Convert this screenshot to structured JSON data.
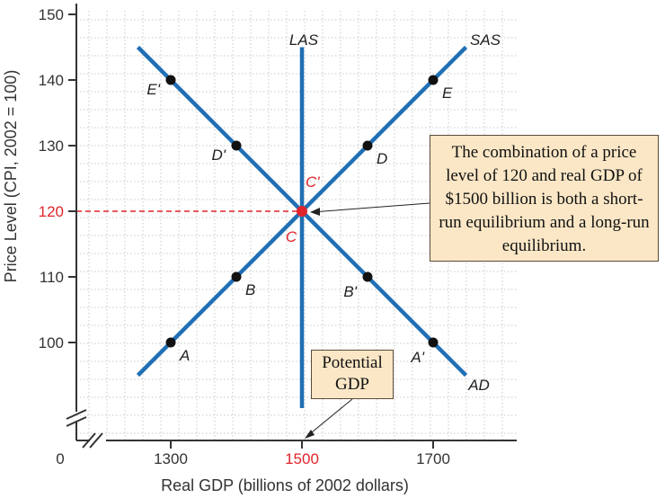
{
  "chart_data": {
    "type": "line",
    "xlabel": "Real GDP (billions of 2002 dollars)",
    "ylabel": "Price Level (CPI, 2002 = 100)",
    "x_ticks": [
      {
        "value": 1300,
        "label": "1300",
        "highlight": false
      },
      {
        "value": 1500,
        "label": "1500",
        "highlight": true
      },
      {
        "value": 1700,
        "label": "1700",
        "highlight": false
      }
    ],
    "y_ticks": [
      {
        "value": 100,
        "label": "100",
        "highlight": false
      },
      {
        "value": 110,
        "label": "110",
        "highlight": false
      },
      {
        "value": 120,
        "label": "120",
        "highlight": true
      },
      {
        "value": 130,
        "label": "130",
        "highlight": false
      },
      {
        "value": 140,
        "label": "140",
        "highlight": false
      },
      {
        "value": 150,
        "label": "150",
        "highlight": false
      }
    ],
    "origin_label": "0",
    "axis_break": true,
    "xlim": [
      1200,
      1750
    ],
    "ylim": [
      90,
      150
    ],
    "series": [
      {
        "name": "AD",
        "color": "#1f6fb5",
        "x": [
          1250,
          1750
        ],
        "y": [
          145,
          95
        ]
      },
      {
        "name": "SAS",
        "color": "#1f6fb5",
        "x": [
          1250,
          1750
        ],
        "y": [
          95,
          145
        ]
      },
      {
        "name": "LAS",
        "color": "#1f6fb5",
        "x": [
          1500,
          1500
        ],
        "y": [
          90,
          145
        ]
      }
    ],
    "points": [
      {
        "label": "A",
        "x": 1300,
        "y": 100,
        "color": "#111111"
      },
      {
        "label": "B",
        "x": 1400,
        "y": 110,
        "color": "#111111"
      },
      {
        "label": "D",
        "x": 1600,
        "y": 130,
        "color": "#111111"
      },
      {
        "label": "E",
        "x": 1700,
        "y": 140,
        "color": "#111111"
      },
      {
        "label": "E'",
        "x": 1300,
        "y": 140,
        "color": "#111111"
      },
      {
        "label": "D'",
        "x": 1400,
        "y": 130,
        "color": "#111111"
      },
      {
        "label": "B'",
        "x": 1600,
        "y": 110,
        "color": "#111111"
      },
      {
        "label": "A'",
        "x": 1700,
        "y": 100,
        "color": "#111111"
      },
      {
        "label": "C",
        "x": 1500,
        "y": 120,
        "color": "#e0242b"
      }
    ],
    "intersection_extra_label": "C'",
    "reference_lines": [
      {
        "y": 120,
        "x_to": 1500,
        "color": "#e0242b",
        "style": "dashed"
      }
    ],
    "annotations": [
      {
        "text": "The combination of a price level of  120 and real GDP of $1500 billion is both a short-run equilibrium and a long-run equilibrium.",
        "points_to": {
          "x": 1500,
          "y": 120
        }
      },
      {
        "text": "Potential GDP",
        "points_to": {
          "x": 1500,
          "y": 90
        }
      }
    ],
    "grid": true
  }
}
